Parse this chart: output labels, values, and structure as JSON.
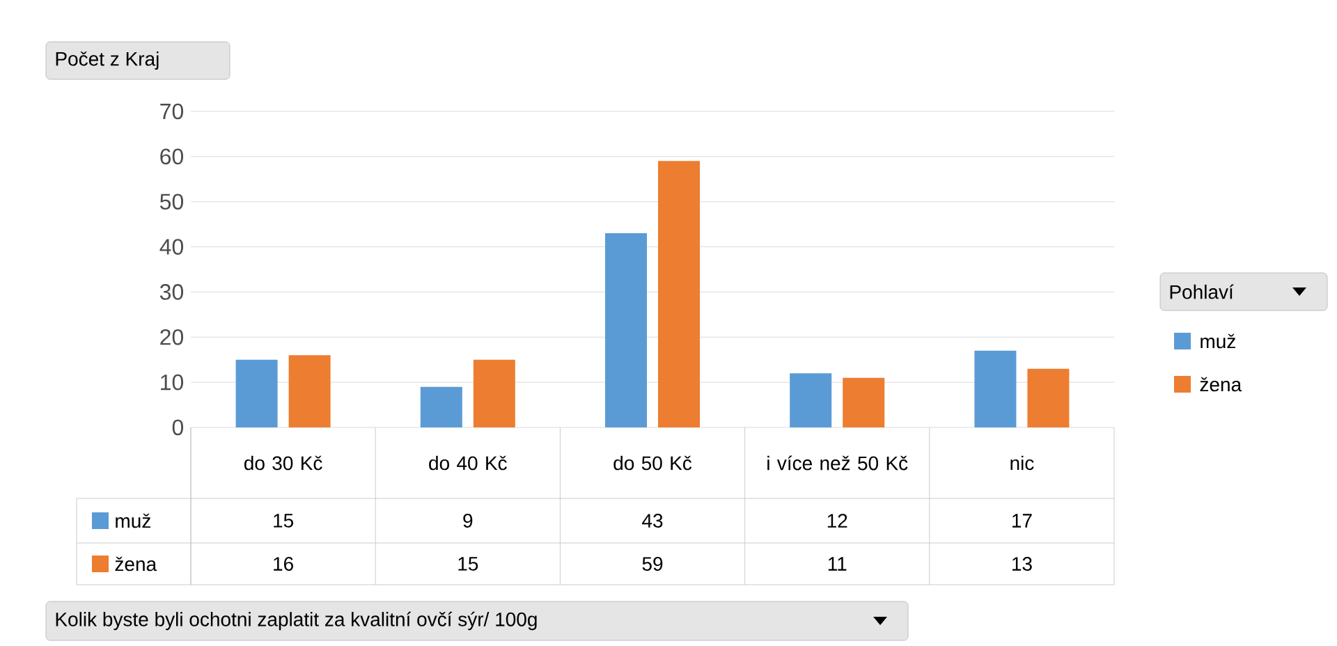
{
  "chart_data": {
    "type": "bar",
    "ylabel": "Počet z Kraj",
    "annotations": [
      "Kolik byste byli ochotni zaplatit za kvalitní ovčí sýr/ 100g"
    ],
    "legend_title": "Pohlaví",
    "categories": [
      "do 30 Kč",
      "do 40 Kč",
      "do 50 Kč",
      "i více než 50 Kč",
      "nic"
    ],
    "series": [
      {
        "name": "muž",
        "color": "#5b9bd5",
        "values": [
          15,
          9,
          43,
          12,
          17
        ]
      },
      {
        "name": "žena",
        "color": "#ed7d31",
        "values": [
          16,
          15,
          59,
          11,
          13
        ]
      }
    ],
    "ylim": [
      0,
      70
    ],
    "yticks": [
      0,
      10,
      20,
      30,
      40,
      50,
      60,
      70
    ],
    "grid": "y",
    "legend": "right",
    "data_labels": true
  }
}
